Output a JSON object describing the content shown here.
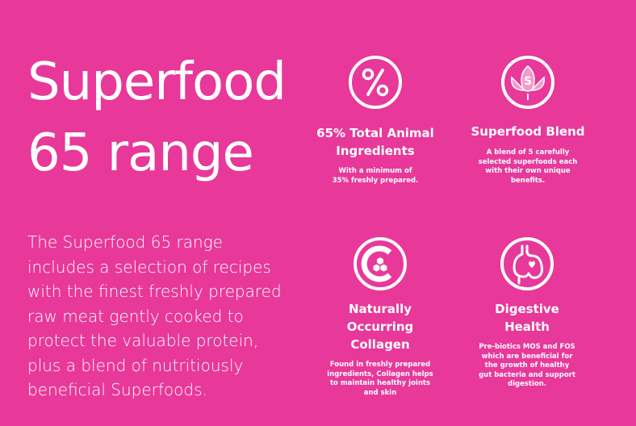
{
  "headline": {
    "line1": "Superfood",
    "line2": "65 range"
  },
  "description": {
    "lines": [
      "The Superfood 65 range",
      "includes a selection of recipes",
      "with the finest freshly prepared",
      "raw meat gently cooked to",
      "protect the valuable protein,",
      "plus a blend of nutritiously",
      "beneficial Superfoods."
    ]
  },
  "features": [
    {
      "icon": "percent-icon",
      "title_lines": [
        "65% Total Animal",
        "Ingredients"
      ],
      "body_lines": [
        "With a minimum of",
        "35% freshly prepared."
      ]
    },
    {
      "icon": "lotus-s-icon",
      "title_lines": [
        "Superfood Blend"
      ],
      "body_lines": [
        "A blend of 5 carefully",
        "selected superfoods each",
        "with their own unique",
        "benefits."
      ]
    },
    {
      "icon": "collagen-c-icon",
      "title_lines": [
        "Naturally",
        "Occurring",
        "Collagen"
      ],
      "body_lines": [
        "Found in freshly prepared",
        "ingredients, Collagen helps",
        "to maintain healthy joints",
        "and skin"
      ]
    },
    {
      "icon": "stomach-heart-icon",
      "title_lines": [
        "Digestive",
        "Health"
      ],
      "body_lines": [
        "Pre-biotics MOS and FOS",
        "which are beneficial for",
        "the growth of healthy",
        "gut bacteria and support",
        "digestion."
      ]
    }
  ],
  "colors": {
    "background": "#E8389A",
    "foreground": "#FFFFFF",
    "icon_accent": "#F49AC8"
  }
}
